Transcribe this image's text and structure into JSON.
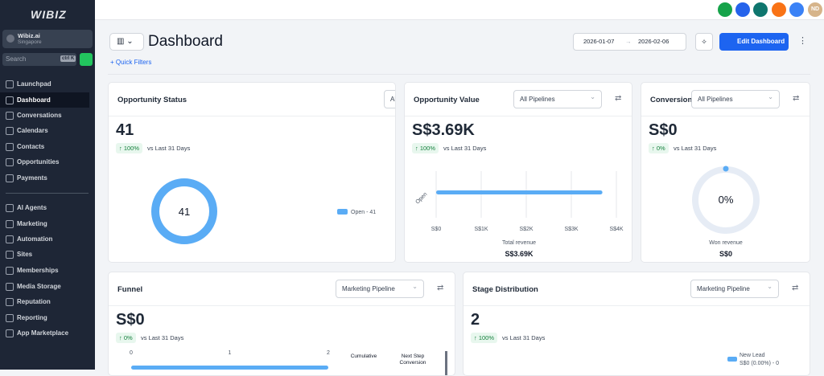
{
  "sidebar": {
    "brand": "WIBIZ",
    "account": {
      "name": "Wibiz.ai",
      "location": "Singapore"
    },
    "search": "Search",
    "shortcut": "ctrl K",
    "nav": [
      "Launchpad",
      "Dashboard",
      "Conversations",
      "Calendars",
      "Contacts",
      "Opportunities",
      "Payments"
    ],
    "nav2": [
      "AI Agents",
      "Marketing",
      "Automation",
      "Sites",
      "Memberships",
      "Media Storage",
      "Reputation",
      "Reporting",
      "App Marketplace"
    ]
  },
  "topbar": {
    "avatar": "ND"
  },
  "header": {
    "title": "Dashboard",
    "date_start": "2026-01-07",
    "date_end": "2026-02-06",
    "edit_button": "Edit Dashboard",
    "quick_filters": "+ Quick Filters"
  },
  "cards": [
    {
      "title": "Opportunity Status",
      "filter": "All Pipelines",
      "value": "41",
      "change": "↑ 100%",
      "compare": "vs Last 31 Days",
      "center": "41",
      "legend": "Open - 41"
    },
    {
      "title": "Opportunity Value",
      "filter": "All Pipelines",
      "value": "S$3.69K",
      "change": "↑ 100%",
      "compare": "vs Last 31 Days",
      "axis_label": "Open",
      "bar_value": 3690,
      "xlim": [
        0,
        4000
      ],
      "xticks": [
        {
          "value": 0,
          "label": "S$0"
        },
        {
          "value": 1000,
          "label": "S$1K"
        },
        {
          "value": 2000,
          "label": "S$2K"
        },
        {
          "value": 3000,
          "label": "S$3K"
        },
        {
          "value": 4000,
          "label": "S$4K"
        }
      ],
      "footer_label": "Total revenue",
      "footer_value": "S$3.69K"
    },
    {
      "title": "Conversion",
      "filter": "All Pipelines",
      "value": "S$0",
      "change": "↑ 0%",
      "compare": "vs Last 31 Days",
      "center": "0%",
      "footer_label": "Won revenue",
      "footer_value": "S$0"
    },
    {
      "title": "Funnel",
      "filter": "Marketing Pipeline",
      "value": "S$0",
      "change": "↑ 0%",
      "compare": "vs Last 31 Days",
      "xlim": [
        0,
        2
      ],
      "xticks": [
        0,
        1,
        2
      ],
      "bar_value": 2,
      "columns": [
        "Cumulative",
        "Next Step Conversion"
      ]
    },
    {
      "title": "Stage Distribution",
      "filter": "Marketing Pipeline",
      "value": "2",
      "change": "↑ 100%",
      "compare": "vs Last 31 Days",
      "legend": [
        "New Lead",
        "S$0 (0.00%) - 0"
      ]
    }
  ]
}
